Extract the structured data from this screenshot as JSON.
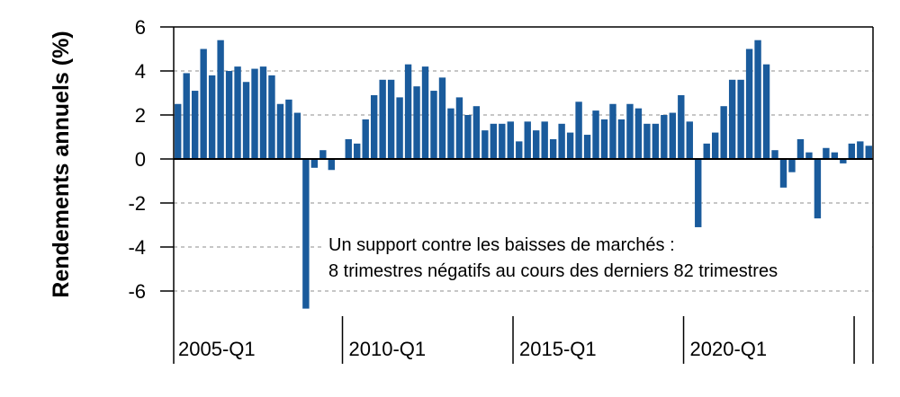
{
  "chart_data": {
    "type": "bar",
    "ylabel": "Rendements annuels (%)",
    "xlabel": "",
    "ylim": [
      -7,
      6
    ],
    "y_ticks": [
      "-6",
      "-4",
      "-2",
      "0",
      "2",
      "4",
      "6"
    ],
    "x_tick_labels": [
      "2005-Q1",
      "2010-Q1",
      "2015-Q1",
      "2020-Q1"
    ],
    "grid": "horizontal dashed",
    "bar_color": "#1a5b9c",
    "annotation": {
      "line1": "Un support contre les baisses de marchés :",
      "line2": "8 trimestres négatifs au cours des derniers 82 trimestres"
    },
    "values": [
      2.5,
      3.9,
      3.1,
      5.0,
      3.8,
      5.4,
      4.0,
      4.2,
      3.5,
      4.1,
      4.2,
      3.8,
      2.5,
      2.7,
      2.1,
      -6.8,
      -0.4,
      0.4,
      -0.5,
      0.0,
      0.9,
      0.7,
      1.8,
      2.9,
      3.6,
      3.6,
      2.8,
      4.3,
      3.3,
      4.2,
      3.1,
      3.7,
      2.3,
      2.8,
      2.0,
      2.4,
      1.3,
      1.6,
      1.6,
      1.7,
      0.8,
      1.7,
      1.3,
      1.7,
      0.9,
      1.6,
      1.2,
      2.6,
      1.1,
      2.2,
      1.8,
      2.5,
      1.8,
      2.5,
      2.3,
      1.6,
      1.6,
      2.0,
      2.1,
      2.9,
      1.7,
      -3.1,
      0.7,
      1.2,
      2.4,
      3.6,
      3.6,
      5.0,
      5.4,
      4.3,
      0.4,
      -1.3,
      -0.6,
      0.9,
      0.3,
      -2.7,
      0.5,
      0.3,
      -0.2,
      0.7,
      0.8,
      0.6
    ]
  }
}
